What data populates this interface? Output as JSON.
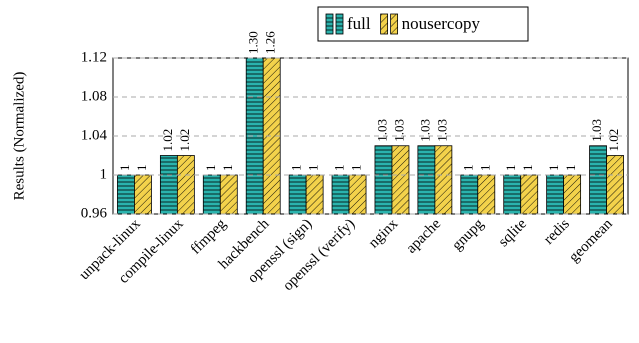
{
  "chart_data": {
    "type": "bar",
    "y_label": "Results (Normalized)",
    "categories": [
      "unpack-linux",
      "compile-linux",
      "ffmpeg",
      "hackbench",
      "openssl (sign)",
      "openssl (verify)",
      "nginx",
      "apache",
      "gnupg",
      "sqlite",
      "redis",
      "geomean"
    ],
    "series": [
      {
        "name": "full",
        "color": "#2ab3ad",
        "pattern": "horizontal",
        "values": [
          1,
          1.02,
          1,
          1.3,
          1,
          1,
          1.03,
          1.03,
          1,
          1,
          1,
          1.03
        ],
        "value_labels": [
          "1",
          "1.02",
          "1",
          "1.30",
          "1",
          "1",
          "1.03",
          "1.03",
          "1",
          "1",
          "1",
          "1.03"
        ]
      },
      {
        "name": "nousercopy",
        "color": "#f3d24b",
        "pattern": "diagonal",
        "values": [
          1,
          1.02,
          1,
          1.26,
          1,
          1,
          1.03,
          1.03,
          1,
          1,
          1,
          1.02
        ],
        "value_labels": [
          "1",
          "1.02",
          "1",
          "1.26",
          "1",
          "1",
          "1.03",
          "1.03",
          "1",
          "1",
          "1",
          "1.02"
        ]
      }
    ],
    "ylim": [
      0.96,
      1.12
    ],
    "yticks": [
      0.96,
      1,
      1.04,
      1.08,
      1.12
    ],
    "grid": true,
    "legend": "top"
  }
}
